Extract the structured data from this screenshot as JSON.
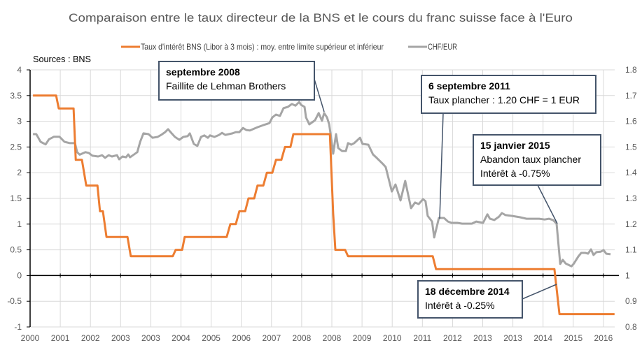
{
  "chart_data": {
    "type": "line",
    "title": "Comparaison entre le taux directeur de la BNS et le cours du franc suisse face à l'Euro",
    "source": "Sources : BNS",
    "x_tick_labels": [
      "2000",
      "2001",
      "2002",
      "2003",
      "2003",
      "2004",
      "2005",
      "2006",
      "2007",
      "2008",
      "2008",
      "2009",
      "2010",
      "2011",
      "2012",
      "2013",
      "2013",
      "2014",
      "2015",
      "2016"
    ],
    "y_left": {
      "range": [
        -1,
        4
      ],
      "ticks": [
        "4",
        "3.5",
        "3",
        "2.5",
        "2",
        "1.5",
        "1",
        "0.5",
        "0",
        "-0.5",
        "-1"
      ]
    },
    "y_right": {
      "range": [
        0.8,
        1.8
      ],
      "ticks": [
        "1.8",
        "1.7",
        "1.6",
        "1.5",
        "1.4",
        "1.3",
        "1.2",
        "1.1",
        "1",
        "0.9",
        "0.8"
      ]
    },
    "grid": true,
    "legend_placement": "top",
    "series": [
      {
        "name": "Taux d'intérêt BNS (Libor à 3 mois) : moy. entre limite supérieur et inférieur",
        "axis": "left",
        "color": "#ed7d31",
        "points": [
          [
            2000.08,
            3.5
          ],
          [
            2000.72,
            3.5
          ],
          [
            2000.79,
            3.25
          ],
          [
            2001.2,
            3.25
          ],
          [
            2001.26,
            2.25
          ],
          [
            2001.43,
            2.25
          ],
          [
            2001.55,
            1.75
          ],
          [
            2001.86,
            1.75
          ],
          [
            2001.93,
            1.25
          ],
          [
            2002.01,
            1.25
          ],
          [
            2002.11,
            0.75
          ],
          [
            2002.69,
            0.75
          ],
          [
            2002.78,
            0.375
          ],
          [
            2003.94,
            0.375
          ],
          [
            2004.02,
            0.5
          ],
          [
            2004.2,
            0.5
          ],
          [
            2004.27,
            0.75
          ],
          [
            2005.43,
            0.75
          ],
          [
            2005.53,
            1.0
          ],
          [
            2005.68,
            1.0
          ],
          [
            2005.78,
            1.25
          ],
          [
            2005.94,
            1.25
          ],
          [
            2006.03,
            1.5
          ],
          [
            2006.19,
            1.5
          ],
          [
            2006.28,
            1.75
          ],
          [
            2006.44,
            1.75
          ],
          [
            2006.54,
            2.0
          ],
          [
            2006.69,
            2.0
          ],
          [
            2006.79,
            2.25
          ],
          [
            2006.94,
            2.25
          ],
          [
            2007.04,
            2.5
          ],
          [
            2007.19,
            2.5
          ],
          [
            2007.27,
            2.75
          ],
          [
            2008.28,
            2.75
          ],
          [
            2008.37,
            1.2
          ],
          [
            2008.43,
            0.5
          ],
          [
            2008.7,
            0.5
          ],
          [
            2008.78,
            0.375
          ],
          [
            2011.12,
            0.375
          ],
          [
            2011.21,
            0.125
          ],
          [
            2014.48,
            0.125
          ],
          [
            2014.62,
            -0.75
          ],
          [
            2016.14,
            -0.75
          ]
        ]
      },
      {
        "name": "CHF/EUR",
        "axis": "right",
        "color": "#a5a5a5",
        "points": [
          [
            2000.08,
            1.55
          ],
          [
            2000.17,
            1.55
          ],
          [
            2000.29,
            1.52
          ],
          [
            2000.43,
            1.51
          ],
          [
            2000.52,
            1.53
          ],
          [
            2000.66,
            1.54
          ],
          [
            2000.81,
            1.54
          ],
          [
            2000.95,
            1.52
          ],
          [
            2001.1,
            1.515
          ],
          [
            2001.24,
            1.515
          ],
          [
            2001.3,
            1.48
          ],
          [
            2001.37,
            1.47
          ],
          [
            2001.53,
            1.48
          ],
          [
            2001.62,
            1.477
          ],
          [
            2001.72,
            1.466
          ],
          [
            2001.88,
            1.463
          ],
          [
            2001.99,
            1.468
          ],
          [
            2002.07,
            1.458
          ],
          [
            2002.17,
            1.468
          ],
          [
            2002.26,
            1.463
          ],
          [
            2002.4,
            1.468
          ],
          [
            2002.46,
            1.452
          ],
          [
            2002.55,
            1.463
          ],
          [
            2002.65,
            1.46
          ],
          [
            2002.71,
            1.471
          ],
          [
            2002.76,
            1.46
          ],
          [
            2002.84,
            1.468
          ],
          [
            2002.96,
            1.48
          ],
          [
            2003.04,
            1.52
          ],
          [
            2003.13,
            1.553
          ],
          [
            2003.27,
            1.55
          ],
          [
            2003.38,
            1.536
          ],
          [
            2003.52,
            1.539
          ],
          [
            2003.62,
            1.547
          ],
          [
            2003.73,
            1.558
          ],
          [
            2003.81,
            1.569
          ],
          [
            2003.91,
            1.553
          ],
          [
            2004.0,
            1.539
          ],
          [
            2004.12,
            1.528
          ],
          [
            2004.23,
            1.539
          ],
          [
            2004.35,
            1.542
          ],
          [
            2004.41,
            1.553
          ],
          [
            2004.52,
            1.512
          ],
          [
            2004.62,
            1.504
          ],
          [
            2004.72,
            1.539
          ],
          [
            2004.81,
            1.545
          ],
          [
            2004.91,
            1.536
          ],
          [
            2004.97,
            1.545
          ],
          [
            2005.09,
            1.539
          ],
          [
            2005.22,
            1.547
          ],
          [
            2005.3,
            1.555
          ],
          [
            2005.39,
            1.547
          ],
          [
            2005.49,
            1.55
          ],
          [
            2005.59,
            1.553
          ],
          [
            2005.68,
            1.558
          ],
          [
            2005.78,
            1.558
          ],
          [
            2005.88,
            1.574
          ],
          [
            2005.97,
            1.566
          ],
          [
            2006.07,
            1.564
          ],
          [
            2006.28,
            1.577
          ],
          [
            2006.44,
            1.585
          ],
          [
            2006.61,
            1.593
          ],
          [
            2006.69,
            1.615
          ],
          [
            2006.79,
            1.626
          ],
          [
            2006.9,
            1.621
          ],
          [
            2007.0,
            1.651
          ],
          [
            2007.12,
            1.656
          ],
          [
            2007.23,
            1.667
          ],
          [
            2007.33,
            1.661
          ],
          [
            2007.43,
            1.675
          ],
          [
            2007.48,
            1.664
          ],
          [
            2007.58,
            1.656
          ],
          [
            2007.62,
            1.615
          ],
          [
            2007.71,
            1.588
          ],
          [
            2007.87,
            1.604
          ],
          [
            2007.97,
            1.632
          ],
          [
            2008.06,
            1.602
          ],
          [
            2008.12,
            1.632
          ],
          [
            2008.2,
            1.615
          ],
          [
            2008.26,
            1.588
          ],
          [
            2008.31,
            1.539
          ],
          [
            2008.37,
            1.474
          ],
          [
            2008.45,
            1.55
          ],
          [
            2008.51,
            1.496
          ],
          [
            2008.62,
            1.484
          ],
          [
            2008.72,
            1.484
          ],
          [
            2008.78,
            1.515
          ],
          [
            2008.87,
            1.509
          ],
          [
            2008.95,
            1.515
          ],
          [
            2009.11,
            1.536
          ],
          [
            2009.18,
            1.512
          ],
          [
            2009.34,
            1.509
          ],
          [
            2009.47,
            1.471
          ],
          [
            2009.57,
            1.458
          ],
          [
            2009.75,
            1.433
          ],
          [
            2009.82,
            1.422
          ],
          [
            2009.99,
            1.327
          ],
          [
            2010.09,
            1.354
          ],
          [
            2010.23,
            1.292
          ],
          [
            2010.36,
            1.368
          ],
          [
            2010.52,
            1.262
          ],
          [
            2010.63,
            1.284
          ],
          [
            2010.73,
            1.278
          ],
          [
            2010.85,
            1.297
          ],
          [
            2010.92,
            1.289
          ],
          [
            2010.98,
            1.232
          ],
          [
            2011.1,
            1.21
          ],
          [
            2011.16,
            1.148
          ],
          [
            2011.29,
            1.224
          ],
          [
            2011.43,
            1.224
          ],
          [
            2011.54,
            1.21
          ],
          [
            2011.64,
            1.205
          ],
          [
            2011.8,
            1.205
          ],
          [
            2011.93,
            1.202
          ],
          [
            2012.2,
            1.202
          ],
          [
            2012.32,
            1.21
          ],
          [
            2012.51,
            1.205
          ],
          [
            2012.63,
            1.238
          ],
          [
            2012.7,
            1.221
          ],
          [
            2012.82,
            1.216
          ],
          [
            2012.95,
            1.229
          ],
          [
            2013.03,
            1.243
          ],
          [
            2013.13,
            1.235
          ],
          [
            2013.3,
            1.232
          ],
          [
            2013.52,
            1.227
          ],
          [
            2013.71,
            1.221
          ],
          [
            2013.86,
            1.221
          ],
          [
            2014.06,
            1.221
          ],
          [
            2014.21,
            1.218
          ],
          [
            2014.33,
            1.221
          ],
          [
            2014.44,
            1.216
          ],
          [
            2014.54,
            1.202
          ],
          [
            2014.64,
            1.045
          ],
          [
            2014.71,
            1.061
          ],
          [
            2014.79,
            1.047
          ],
          [
            2014.95,
            1.036
          ],
          [
            2015.02,
            1.047
          ],
          [
            2015.14,
            1.074
          ],
          [
            2015.22,
            1.088
          ],
          [
            2015.33,
            1.088
          ],
          [
            2015.41,
            1.085
          ],
          [
            2015.49,
            1.102
          ],
          [
            2015.56,
            1.08
          ],
          [
            2015.64,
            1.091
          ],
          [
            2015.76,
            1.093
          ],
          [
            2015.84,
            1.099
          ],
          [
            2015.91,
            1.085
          ],
          [
            2016.03,
            1.083
          ]
        ]
      }
    ],
    "annotations": [
      {
        "title": "septembre 2008",
        "lines": [
          "Faillite de Lehman Brothers"
        ]
      },
      {
        "title": "6 septembre 2011",
        "lines": [
          "Taux plancher : 1.20 CHF = 1 EUR"
        ]
      },
      {
        "title": "15 janvier 2015",
        "lines": [
          "Abandon taux plancher",
          "Intérêt à -0.75%"
        ]
      },
      {
        "title": "18 décembre 2014",
        "lines": [
          "Intérêt à -0.25%"
        ]
      }
    ]
  }
}
